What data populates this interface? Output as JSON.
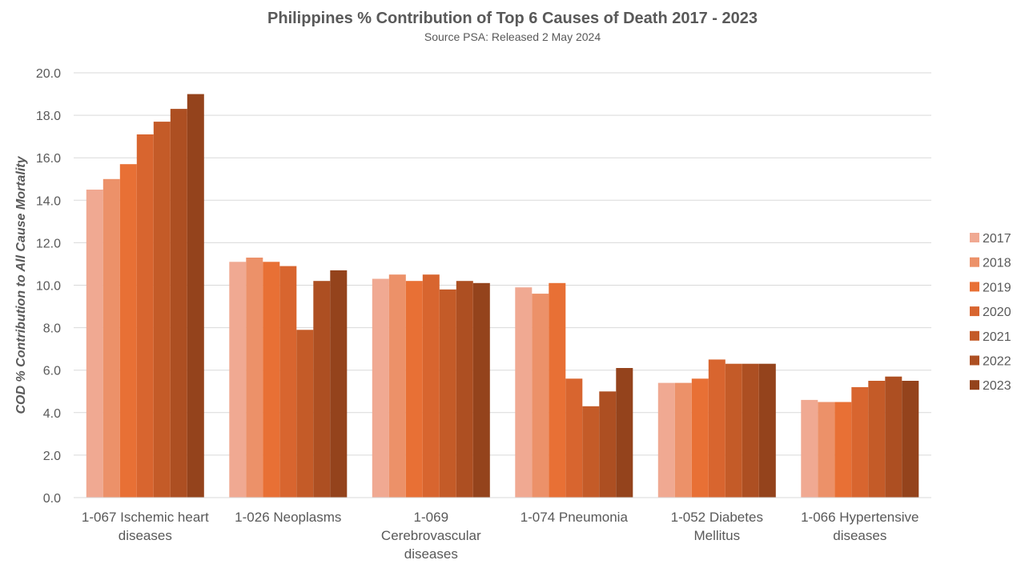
{
  "chart_data": {
    "type": "bar",
    "title": "Philippines % Contribution of Top 6 Causes of Death 2017 - 2023",
    "subtitle": "Source PSA: Released 2 May 2024",
    "ylabel": "COD % Contribution to All Cause Mortality",
    "xlabel": "",
    "ylim": [
      0,
      20
    ],
    "ytick_step": 2,
    "ytick_labels": [
      "0.0",
      "2.0",
      "4.0",
      "6.0",
      "8.0",
      "10.0",
      "12.0",
      "14.0",
      "16.0",
      "18.0",
      "20.0"
    ],
    "grid": true,
    "legend_position": "right",
    "categories": [
      [
        "1-067  Ischemic heart",
        "diseases"
      ],
      [
        "1-026  Neoplasms"
      ],
      [
        "1-069",
        "Cerebrovascular",
        "diseases"
      ],
      [
        "1-074  Pneumonia"
      ],
      [
        "1-052  Diabetes",
        "Mellitus"
      ],
      [
        "1-066  Hypertensive",
        "diseases"
      ]
    ],
    "series": [
      {
        "name": "2017",
        "color": "#f0a992",
        "values": [
          14.5,
          11.1,
          10.3,
          9.9,
          5.4,
          4.6
        ]
      },
      {
        "name": "2018",
        "color": "#ec9169",
        "values": [
          15.0,
          11.3,
          10.5,
          9.6,
          5.4,
          4.5
        ]
      },
      {
        "name": "2019",
        "color": "#e87035",
        "values": [
          15.7,
          11.1,
          10.2,
          10.1,
          5.6,
          4.5
        ]
      },
      {
        "name": "2020",
        "color": "#d8652f",
        "values": [
          17.1,
          10.9,
          10.5,
          5.6,
          6.5,
          5.2
        ]
      },
      {
        "name": "2021",
        "color": "#c45b28",
        "values": [
          17.7,
          7.9,
          9.8,
          4.3,
          6.3,
          5.5
        ]
      },
      {
        "name": "2022",
        "color": "#ad4f22",
        "values": [
          18.3,
          10.2,
          10.2,
          5.0,
          6.3,
          5.7
        ]
      },
      {
        "name": "2023",
        "color": "#94431c",
        "values": [
          19.0,
          10.7,
          10.1,
          6.1,
          6.3,
          5.5
        ]
      }
    ]
  }
}
